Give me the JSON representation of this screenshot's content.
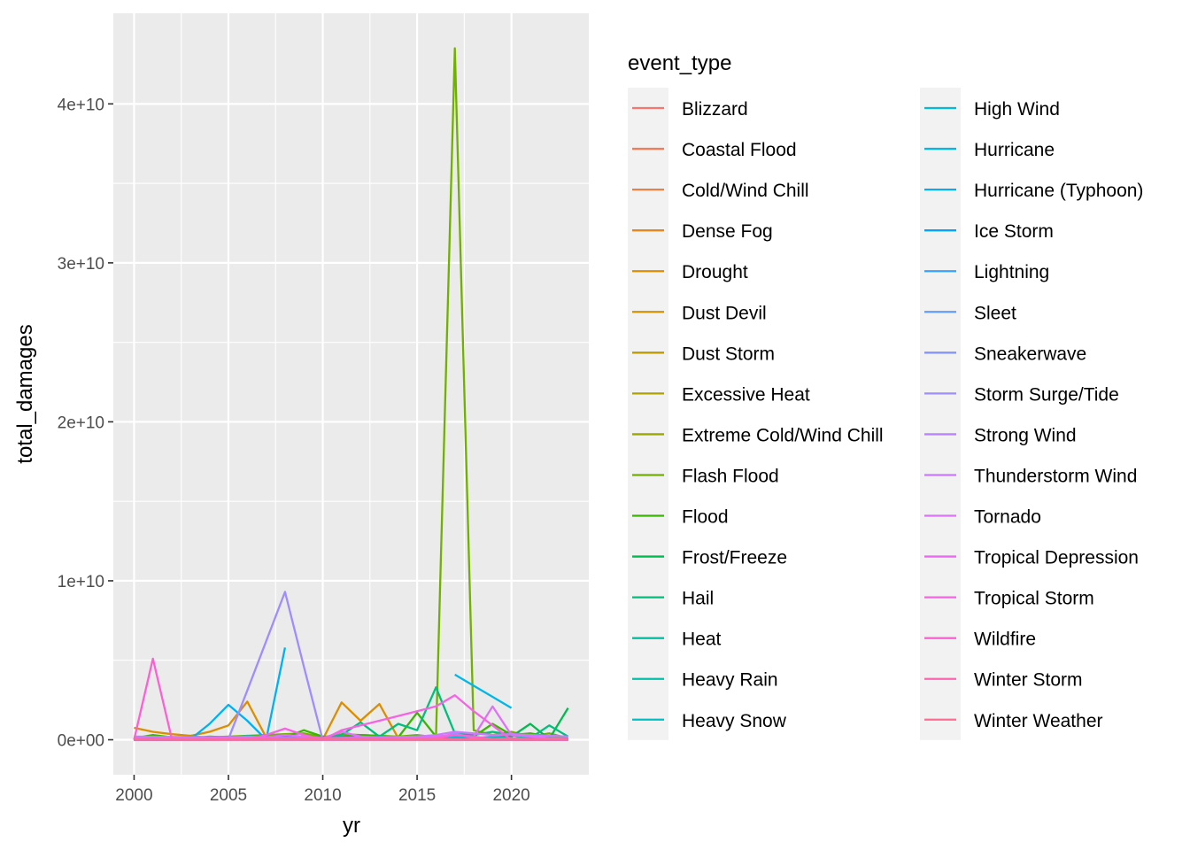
{
  "chart_data": {
    "type": "line",
    "xlabel": "yr",
    "ylabel": "total_damages",
    "xlim": [
      1998.9,
      2024.1
    ],
    "ylim": [
      -2200000000,
      45700000000
    ],
    "x_ticks": [
      2000,
      2005,
      2010,
      2015,
      2020
    ],
    "x_tick_labels": [
      "2000",
      "2005",
      "2010",
      "2015",
      "2020"
    ],
    "y_ticks": [
      0,
      10000000000,
      20000000000,
      30000000000,
      40000000000
    ],
    "y_tick_labels": [
      "0e+00",
      "1e+10",
      "2e+10",
      "3e+10",
      "4e+10"
    ],
    "grid": true,
    "legend": {
      "title": "event_type",
      "position": "right",
      "columns": 2
    },
    "series": [
      {
        "name": "Blizzard",
        "color": "#F8766D",
        "x": [
          2000,
          2005,
          2010,
          2015,
          2020,
          2023
        ],
        "y": [
          0,
          10000000,
          5000000,
          8000000,
          5000000,
          3000000
        ]
      },
      {
        "name": "Coastal Flood",
        "color": "#F37B59",
        "x": [
          2000,
          2005,
          2010,
          2015,
          2020,
          2023
        ],
        "y": [
          20000000,
          30000000,
          10000000,
          20000000,
          10000000,
          5000000
        ]
      },
      {
        "name": "Cold/Wind Chill",
        "color": "#ED8141",
        "x": [
          2000,
          2005,
          2010,
          2015,
          2020,
          2023
        ],
        "y": [
          0,
          5000000,
          0,
          2000000,
          1000000,
          0
        ]
      },
      {
        "name": "Dense Fog",
        "color": "#E7861B",
        "x": [
          2000,
          2005,
          2010,
          2015,
          2020,
          2023
        ],
        "y": [
          0,
          2000000,
          1000000,
          0,
          0,
          0
        ]
      },
      {
        "name": "Drought",
        "color": "#DB8E00",
        "x": [
          2000,
          2001,
          2002,
          2003,
          2004,
          2005,
          2006,
          2007,
          2008,
          2009,
          2010,
          2011,
          2012,
          2013,
          2014,
          2015,
          2016,
          2017,
          2018,
          2019,
          2020,
          2021,
          2022,
          2023
        ],
        "y": [
          750000000,
          500000000,
          350000000,
          250000000,
          500000000,
          900000000,
          2400000000,
          150000000,
          100000000,
          50000000,
          20000000,
          2350000000,
          1200000000,
          2250000000,
          100000000,
          200000000,
          150000000,
          250000000,
          100000000,
          200000000,
          300000000,
          100000000,
          50000000,
          0
        ]
      },
      {
        "name": "Dust Devil",
        "color": "#CF9400",
        "x": [
          2000,
          2005,
          2010,
          2015,
          2020,
          2023
        ],
        "y": [
          0,
          0,
          100000,
          0,
          0,
          0
        ]
      },
      {
        "name": "Dust Storm",
        "color": "#BE9C00",
        "x": [
          2000,
          2005,
          2010,
          2015,
          2020,
          2023
        ],
        "y": [
          0,
          5000000,
          10000000,
          20000000,
          5000000,
          0
        ]
      },
      {
        "name": "Excessive Heat",
        "color": "#AEA200",
        "x": [
          2000,
          2005,
          2010,
          2015,
          2020,
          2023
        ],
        "y": [
          0,
          1000000,
          0,
          0,
          2000000,
          0
        ]
      },
      {
        "name": "Extreme Cold/Wind Chill",
        "color": "#9AA800",
        "x": [
          2000,
          2005,
          2010,
          2015,
          2020,
          2023
        ],
        "y": [
          0,
          10000000,
          20000000,
          5000000,
          50000000,
          10000000
        ]
      },
      {
        "name": "Flash Flood",
        "color": "#72B000",
        "x": [
          2000,
          2001,
          2002,
          2003,
          2004,
          2005,
          2006,
          2007,
          2008,
          2009,
          2010,
          2011,
          2012,
          2013,
          2014,
          2015,
          2016,
          2017,
          2018,
          2019,
          2020,
          2021,
          2022,
          2023
        ],
        "y": [
          100000000,
          50000000,
          100000000,
          80000000,
          150000000,
          200000000,
          250000000,
          300000000,
          350000000,
          400000000,
          150000000,
          350000000,
          300000000,
          250000000,
          200000000,
          300000000,
          150000000,
          43500000000,
          600000000,
          300000000,
          500000000,
          200000000,
          400000000,
          100000000
        ]
      },
      {
        "name": "Flood",
        "color": "#39B600",
        "x": [
          2000,
          2001,
          2002,
          2003,
          2004,
          2005,
          2006,
          2007,
          2008,
          2009,
          2010,
          2011,
          2012,
          2013,
          2014,
          2015,
          2016,
          2017,
          2018,
          2019,
          2020,
          2021,
          2022,
          2023
        ],
        "y": [
          100000000,
          300000000,
          150000000,
          100000000,
          200000000,
          150000000,
          100000000,
          200000000,
          150000000,
          600000000,
          200000000,
          200000000,
          300000000,
          250000000,
          150000000,
          1700000000,
          200000000,
          300000000,
          200000000,
          1000000000,
          300000000,
          400000000,
          200000000,
          100000000
        ]
      },
      {
        "name": "Frost/Freeze",
        "color": "#00BB4E",
        "x": [
          2000,
          2005,
          2010,
          2012,
          2015,
          2018,
          2019,
          2020,
          2021,
          2022,
          2023
        ],
        "y": [
          0,
          10000000,
          50000000,
          100000000,
          20000000,
          50000000,
          100000000,
          200000000,
          1000000000,
          50000000,
          2000000000
        ]
      },
      {
        "name": "Hail",
        "color": "#00BF7D",
        "x": [
          2000,
          2001,
          2002,
          2003,
          2004,
          2005,
          2006,
          2007,
          2008,
          2009,
          2010,
          2011,
          2012,
          2013,
          2014,
          2015,
          2016,
          2017,
          2018,
          2019,
          2020,
          2021,
          2022,
          2023
        ],
        "y": [
          200000000,
          150000000,
          100000000,
          200000000,
          150000000,
          100000000,
          250000000,
          150000000,
          200000000,
          100000000,
          100000000,
          300000000,
          1100000000,
          200000000,
          1000000000,
          600000000,
          3300000000,
          400000000,
          300000000,
          500000000,
          300000000,
          100000000,
          900000000,
          200000000
        ]
      },
      {
        "name": "Heat",
        "color": "#00C0A2",
        "x": [
          2000,
          2005,
          2010,
          2015,
          2020,
          2023
        ],
        "y": [
          0,
          5000000,
          10000000,
          5000000,
          0,
          0
        ]
      },
      {
        "name": "Heavy Rain",
        "color": "#00C1A9",
        "x": [
          2000,
          2005,
          2010,
          2015,
          2020,
          2023
        ],
        "y": [
          20000000,
          50000000,
          30000000,
          60000000,
          40000000,
          20000000
        ]
      },
      {
        "name": "Heavy Snow",
        "color": "#00BFC4",
        "x": [
          2000,
          2005,
          2010,
          2015,
          2020,
          2023
        ],
        "y": [
          30000000,
          20000000,
          50000000,
          10000000,
          20000000,
          5000000
        ]
      },
      {
        "name": "High Wind",
        "color": "#00BCD8",
        "x": [
          2000,
          2005,
          2010,
          2015,
          2020,
          2023
        ],
        "y": [
          100000000,
          150000000,
          100000000,
          200000000,
          100000000,
          50000000
        ]
      },
      {
        "name": "Hurricane",
        "color": "#00B8E7",
        "x": [
          2017,
          2018,
          2019,
          2020
        ],
        "y": [
          4100000000,
          3400000000,
          2700000000,
          2000000000
        ]
      },
      {
        "name": "Hurricane (Typhoon)",
        "color": "#00B0F6",
        "x": [
          2000,
          2001,
          2002,
          2003,
          2004,
          2005,
          2006,
          2007,
          2008
        ],
        "y": [
          0,
          0,
          0,
          50000000,
          1000000000,
          2200000000,
          1200000000,
          10000000,
          5800000000
        ]
      },
      {
        "name": "Ice Storm",
        "color": "#00A5FF",
        "x": [
          2000,
          2005,
          2010,
          2015,
          2020,
          2023
        ],
        "y": [
          10000000,
          50000000,
          20000000,
          30000000,
          20000000,
          10000000
        ]
      },
      {
        "name": "Lightning",
        "color": "#35A2FF",
        "x": [
          2000,
          2005,
          2010,
          2015,
          2020,
          2023
        ],
        "y": [
          5000000,
          10000000,
          5000000,
          8000000,
          3000000,
          2000000
        ]
      },
      {
        "name": "Sleet",
        "color": "#619CFF",
        "x": [
          2000,
          2005,
          2010,
          2015,
          2020,
          2023
        ],
        "y": [
          0,
          0,
          0,
          0,
          0,
          0
        ]
      },
      {
        "name": "Sneakerwave",
        "color": "#8494FF",
        "x": [
          2000,
          2005,
          2010,
          2015,
          2020,
          2023
        ],
        "y": [
          0,
          0,
          0,
          0,
          0,
          0
        ]
      },
      {
        "name": "Storm Surge/Tide",
        "color": "#9F8CFF",
        "x": [
          2000,
          2001,
          2002,
          2003,
          2004,
          2005,
          2006,
          2007,
          2008,
          2009,
          2010,
          2011,
          2012,
          2013,
          2014,
          2015,
          2016,
          2017,
          2018,
          2019,
          2020,
          2021,
          2022,
          2023
        ],
        "y": [
          100000000,
          50000000,
          20000000,
          10000000,
          30000000,
          50000000,
          3100000000,
          6200000000,
          9300000000,
          4600000000,
          0,
          50000000,
          100000000,
          30000000,
          20000000,
          50000000,
          100000000,
          400000000,
          100000000,
          50000000,
          30000000,
          20000000,
          10000000,
          0
        ]
      },
      {
        "name": "Strong Wind",
        "color": "#B983FF",
        "x": [
          2000,
          2005,
          2010,
          2015,
          2020,
          2023
        ],
        "y": [
          10000000,
          20000000,
          10000000,
          20000000,
          10000000,
          5000000
        ]
      },
      {
        "name": "Thunderstorm Wind",
        "color": "#CD79FF",
        "x": [
          2000,
          2005,
          2010,
          2015,
          2016,
          2017,
          2018,
          2019,
          2020,
          2023
        ],
        "y": [
          200000000,
          150000000,
          100000000,
          200000000,
          300000000,
          500000000,
          400000000,
          300000000,
          350000000,
          200000000
        ]
      },
      {
        "name": "Tornado",
        "color": "#DE71F9",
        "x": [
          2000,
          2001,
          2002,
          2003,
          2004,
          2005,
          2006,
          2007,
          2008,
          2009,
          2010,
          2011,
          2012,
          2013,
          2014,
          2015,
          2016,
          2017,
          2018,
          2019,
          2020,
          2021,
          2022,
          2023
        ],
        "y": [
          100000000,
          50000000,
          100000000,
          50000000,
          100000000,
          150000000,
          200000000,
          150000000,
          300000000,
          200000000,
          100000000,
          500000000,
          200000000,
          150000000,
          100000000,
          150000000,
          200000000,
          300000000,
          200000000,
          2100000000,
          300000000,
          200000000,
          100000000,
          50000000
        ]
      },
      {
        "name": "Tropical Depression",
        "color": "#EB69F0",
        "x": [
          2000,
          2005,
          2010,
          2015,
          2020,
          2023
        ],
        "y": [
          0,
          0,
          0,
          0,
          0,
          0
        ]
      },
      {
        "name": "Tropical Storm",
        "color": "#F564E3",
        "x": [
          2000,
          2001,
          2002,
          2003,
          2004,
          2005,
          2006,
          2007,
          2008,
          2009,
          2010,
          2011,
          2012,
          2013,
          2014,
          2015,
          2016,
          2017,
          2018,
          2019,
          2020,
          2021,
          2022,
          2023
        ],
        "y": [
          0,
          0,
          0,
          0,
          0,
          0,
          0,
          300000000,
          700000000,
          300000000,
          0,
          600000000,
          900000000,
          1200000000,
          1500000000,
          1800000000,
          2100000000,
          2800000000,
          1800000000,
          900000000,
          0,
          0,
          0,
          0
        ]
      },
      {
        "name": "Wildfire",
        "color": "#FD61D1",
        "x": [
          2000,
          2001,
          2002,
          2003,
          2004,
          2005,
          2006,
          2007,
          2008,
          2009,
          2010,
          2011,
          2012,
          2013,
          2014,
          2015,
          2016,
          2017,
          2018,
          2019,
          2020,
          2021,
          2022,
          2023
        ],
        "y": [
          0,
          5100000000,
          50000000,
          20000000,
          50000000,
          10000000,
          30000000,
          100000000,
          50000000,
          20000000,
          10000000,
          50000000,
          30000000,
          20000000,
          30000000,
          50000000,
          100000000,
          300000000,
          200000000,
          50000000,
          100000000,
          50000000,
          30000000,
          20000000
        ]
      },
      {
        "name": "Winter Storm",
        "color": "#FF64B0",
        "x": [
          2000,
          2005,
          2010,
          2015,
          2020,
          2023
        ],
        "y": [
          50000000,
          30000000,
          100000000,
          50000000,
          20000000,
          30000000
        ]
      },
      {
        "name": "Winter Weather",
        "color": "#FF6C91",
        "x": [
          2000,
          2005,
          2010,
          2015,
          2020,
          2023
        ],
        "y": [
          10000000,
          5000000,
          20000000,
          10000000,
          5000000,
          3000000
        ]
      }
    ]
  }
}
